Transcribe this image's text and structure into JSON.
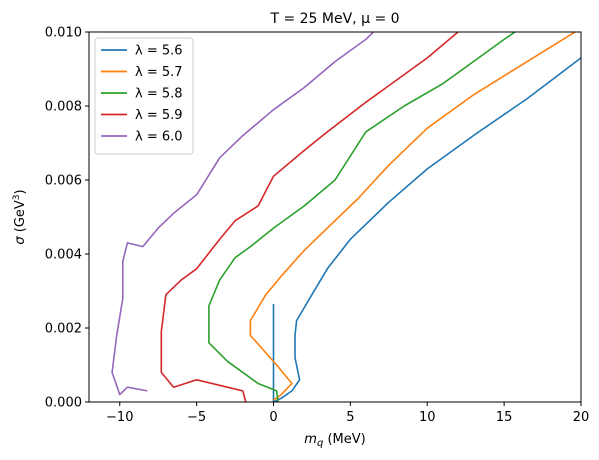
{
  "chart_data": {
    "type": "line",
    "title": "T = 25 MeV, μ = 0",
    "xlabel": "m_q (MeV)",
    "ylabel": "σ (GeV³)",
    "xlim": [
      -12,
      20
    ],
    "ylim": [
      0,
      0.01
    ],
    "xticks": [
      -10,
      -5,
      0,
      5,
      10,
      15,
      20
    ],
    "xtick_labels": [
      "−10",
      "−5",
      "0",
      "5",
      "10",
      "15",
      "20"
    ],
    "yticks": [
      0,
      0.002,
      0.004,
      0.006,
      0.008,
      0.01
    ],
    "ytick_labels": [
      "0.000",
      "0.002",
      "0.004",
      "0.006",
      "0.008",
      "0.010"
    ],
    "grid": false,
    "legend_position": "top-left",
    "series": [
      {
        "name": "λ = 5.6",
        "color": "#1f77b4",
        "points": [
          [
            0,
            0.00265
          ],
          [
            0,
            0.0
          ],
          [
            0.5,
            0.0001
          ],
          [
            1.2,
            0.0003
          ],
          [
            1.7,
            0.0006
          ],
          [
            1.4,
            0.0012
          ],
          [
            1.4,
            0.0018
          ],
          [
            1.5,
            0.0022
          ],
          [
            2.5,
            0.0029
          ],
          [
            3.5,
            0.0036
          ],
          [
            5,
            0.0044
          ],
          [
            7.5,
            0.0054
          ],
          [
            10,
            0.0063
          ],
          [
            13,
            0.0072
          ],
          [
            16.5,
            0.0082
          ],
          [
            20,
            0.0093
          ]
        ]
      },
      {
        "name": "λ = 5.7",
        "color": "#ff7f0e",
        "points": [
          [
            0,
            5e-05
          ],
          [
            0.5,
            0.0002
          ],
          [
            1.2,
            0.0005
          ],
          [
            0.2,
            0.001
          ],
          [
            -1.5,
            0.0018
          ],
          [
            -1.5,
            0.0022
          ],
          [
            -0.5,
            0.0029
          ],
          [
            0.5,
            0.0034
          ],
          [
            2,
            0.0041
          ],
          [
            4,
            0.0049
          ],
          [
            5.5,
            0.0055
          ],
          [
            7.5,
            0.0064
          ],
          [
            10,
            0.0074
          ],
          [
            13,
            0.0083
          ],
          [
            16.5,
            0.0092
          ],
          [
            20,
            0.0101
          ]
        ]
      },
      {
        "name": "λ = 5.8",
        "color": "#2ca02c",
        "points": [
          [
            0.3,
            0.0
          ],
          [
            0.2,
            0.0003
          ],
          [
            -1.0,
            0.0005
          ],
          [
            -3.0,
            0.0011
          ],
          [
            -4.2,
            0.0016
          ],
          [
            -4.2,
            0.0026
          ],
          [
            -3.5,
            0.0033
          ],
          [
            -2.5,
            0.0039
          ],
          [
            -1.5,
            0.0042
          ],
          [
            0,
            0.0047
          ],
          [
            2,
            0.0053
          ],
          [
            4,
            0.006
          ],
          [
            6,
            0.0073
          ],
          [
            8.5,
            0.008
          ],
          [
            11,
            0.0086
          ],
          [
            13,
            0.0092
          ],
          [
            15,
            0.0098
          ],
          [
            15.7,
            0.01
          ]
        ]
      },
      {
        "name": "λ = 5.9",
        "color": "#d62728",
        "points": [
          [
            -1.8,
            0.0
          ],
          [
            -2.0,
            0.0003
          ],
          [
            -3.0,
            0.0004
          ],
          [
            -5.0,
            0.0006
          ],
          [
            -6.5,
            0.0004
          ],
          [
            -7.3,
            0.0008
          ],
          [
            -7.3,
            0.0019
          ],
          [
            -7.0,
            0.0029
          ],
          [
            -6.0,
            0.0033
          ],
          [
            -5.0,
            0.0036
          ],
          [
            -3.5,
            0.0044
          ],
          [
            -2.5,
            0.0049
          ],
          [
            -1.0,
            0.0053
          ],
          [
            0,
            0.0061
          ],
          [
            2,
            0.0068
          ],
          [
            3.5,
            0.0073
          ],
          [
            6,
            0.0081
          ],
          [
            8,
            0.0087
          ],
          [
            10,
            0.0093
          ],
          [
            12,
            0.01
          ]
        ]
      },
      {
        "name": "λ = 6.0",
        "color": "#9467bd",
        "points": [
          [
            -8.2,
            0.0003
          ],
          [
            -9.5,
            0.0004
          ],
          [
            -10.0,
            0.0002
          ],
          [
            -10.5,
            0.0008
          ],
          [
            -10.2,
            0.0018
          ],
          [
            -9.8,
            0.0028
          ],
          [
            -9.8,
            0.0038
          ],
          [
            -9.5,
            0.0043
          ],
          [
            -8.5,
            0.0042
          ],
          [
            -7.5,
            0.0047
          ],
          [
            -6.5,
            0.0051
          ],
          [
            -5.0,
            0.0056
          ],
          [
            -3.5,
            0.0066
          ],
          [
            -2.0,
            0.0072
          ],
          [
            0,
            0.0079
          ],
          [
            2,
            0.0085
          ],
          [
            4,
            0.0092
          ],
          [
            6,
            0.0098
          ],
          [
            6.5,
            0.01
          ]
        ]
      }
    ]
  }
}
